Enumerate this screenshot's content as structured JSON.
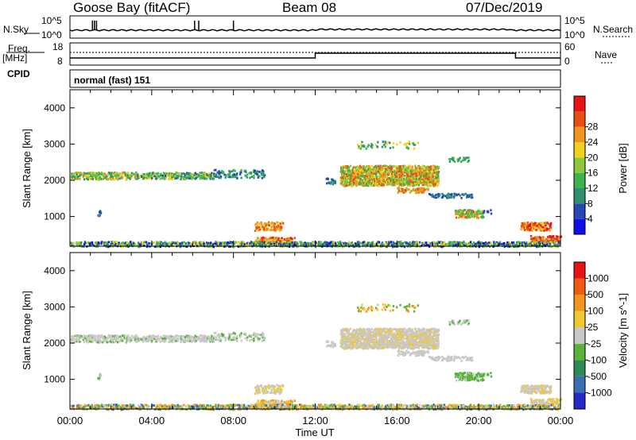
{
  "header": {
    "station": "Goose Bay (fitACF)",
    "beam": "Beam 08",
    "date": "07/Dec/2019"
  },
  "noise_panel": {
    "left_label": "N.Sky",
    "right_label": "N.Search",
    "ticks_left": [
      "10^5",
      "10^0"
    ],
    "ticks_right": [
      "10^5",
      "10^0"
    ]
  },
  "freq_panel": {
    "left_label_1": "Freq.",
    "left_label_2": "[MHz]",
    "right_label": "Nave",
    "ticks_left": [
      "18",
      "8"
    ],
    "ticks_right": [
      "60",
      "0"
    ]
  },
  "cpid": {
    "label": "CPID",
    "value": "normal (fast) 151"
  },
  "chart_data": [
    {
      "type": "heatmap",
      "title": "Power",
      "ylabel": "Slant Range [km]",
      "xlabel": "",
      "yticks": [
        "1000",
        "2000",
        "3000",
        "4000"
      ],
      "ylim": [
        180,
        4500
      ],
      "colorbar": {
        "label": "Power [dB]",
        "ticks": [
          "4",
          "8",
          "12",
          "16",
          "20",
          "24",
          "28"
        ],
        "colors": [
          "#1010e6",
          "#2846b4",
          "#2f8f6e",
          "#3cb44b",
          "#8cc83c",
          "#f0d21e",
          "#f0961e",
          "#e65014",
          "#e61414"
        ]
      }
    },
    {
      "type": "heatmap",
      "title": "Velocity",
      "ylabel": "Slant Range [km]",
      "xlabel": "Time UT",
      "xticks": [
        "00:00",
        "04:00",
        "08:00",
        "12:00",
        "16:00",
        "20:00",
        "00:00"
      ],
      "yticks": [
        "1000",
        "2000",
        "3000",
        "4000"
      ],
      "ylim": [
        180,
        4500
      ],
      "colorbar": {
        "label": "Velocity [m s^-1]",
        "ticks": [
          "1000",
          "500",
          "100",
          "25",
          "-25",
          "-100",
          "-500",
          "-1000"
        ],
        "colors": [
          "#2828c8",
          "#3c6eb4",
          "#2e8b57",
          "#5ab43c",
          "#c8c8c8",
          "#f0c832",
          "#f0961e",
          "#f05a14",
          "#e61414"
        ]
      }
    }
  ]
}
